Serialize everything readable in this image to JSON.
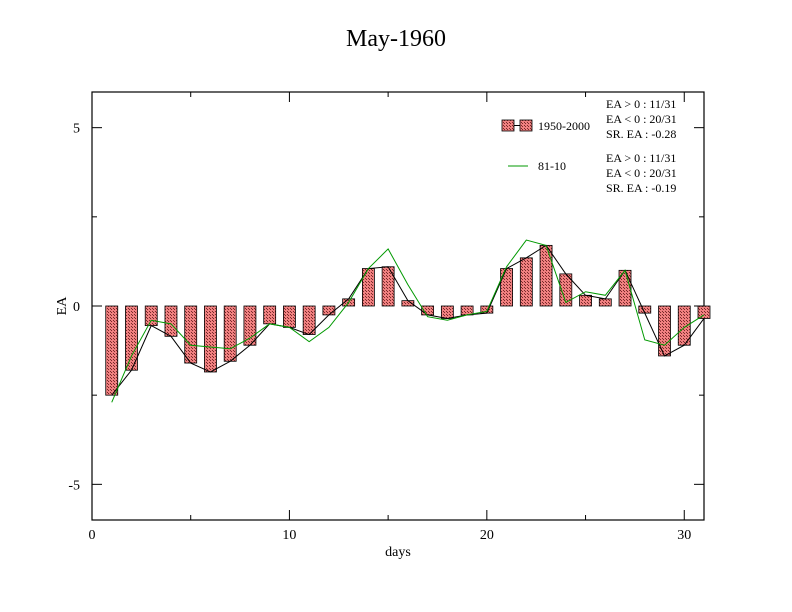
{
  "chart_data": {
    "type": "bar",
    "title": "May-1960",
    "xlabel": "days",
    "ylabel": "EA",
    "xlim": [
      0,
      31
    ],
    "ylim": [
      -6,
      6
    ],
    "xticks": [
      0,
      10,
      20,
      30
    ],
    "xtick_labels": [
      "0",
      "10",
      "20",
      "30"
    ],
    "yticks": [
      -5,
      0,
      5
    ],
    "ytick_labels": [
      "-5",
      "0",
      "5"
    ],
    "grid": false,
    "legend_position": "top-right",
    "x": [
      1,
      2,
      3,
      4,
      5,
      6,
      7,
      8,
      9,
      10,
      11,
      12,
      13,
      14,
      15,
      16,
      17,
      18,
      19,
      20,
      21,
      22,
      23,
      24,
      25,
      26,
      27,
      28,
      29,
      30,
      31
    ],
    "series": [
      {
        "name": "1950-2000",
        "style": "bar",
        "bar_fill": "#f08080",
        "line_color": "#000000",
        "values": [
          -2.5,
          -1.8,
          -0.55,
          -0.85,
          -1.6,
          -1.85,
          -1.55,
          -1.1,
          -0.5,
          -0.6,
          -0.8,
          -0.25,
          0.2,
          1.05,
          1.1,
          0.15,
          -0.25,
          -0.35,
          -0.25,
          -0.2,
          1.05,
          1.35,
          1.7,
          0.9,
          0.3,
          0.2,
          1.0,
          -0.2,
          -1.4,
          -1.1,
          -0.35
        ]
      },
      {
        "name": "81-10",
        "style": "line",
        "color": "#009900",
        "values": [
          -2.7,
          -1.4,
          -0.4,
          -0.5,
          -1.1,
          -1.15,
          -1.2,
          -0.9,
          -0.5,
          -0.6,
          -1.0,
          -0.6,
          0.1,
          1.05,
          1.6,
          0.6,
          -0.3,
          -0.4,
          -0.25,
          -0.15,
          1.1,
          1.85,
          1.7,
          0.1,
          0.4,
          0.3,
          1.0,
          -0.95,
          -1.1,
          -0.6,
          -0.25
        ]
      }
    ],
    "stats": {
      "set1": [
        "EA > 0 : 11/31",
        "EA < 0 : 20/31",
        "SR. EA : -0.28"
      ],
      "set2": [
        "EA > 0 : 11/31",
        "EA < 0 : 20/31",
        "SR. EA : -0.19"
      ]
    }
  }
}
